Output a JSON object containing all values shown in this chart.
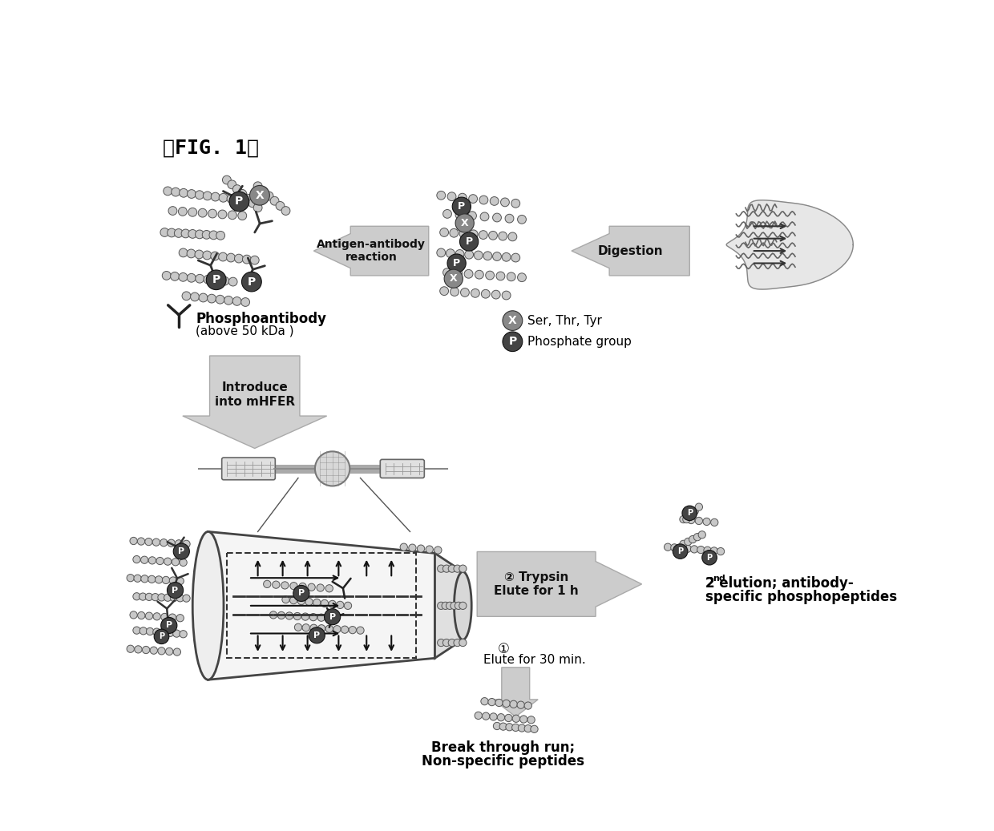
{
  "bg_color": "#ffffff",
  "text_color": "#000000",
  "bead_color": "#c8c8c8",
  "bead_ec": "#555555",
  "antibody_color": "#333333",
  "P_bg": "#555555",
  "X_bg": "#888888",
  "arrow_fill": "#cccccc",
  "arrow_ec": "#aaaaaa",
  "labels": {
    "fig_label": "《FIG. 1》",
    "phosphoantibody": "Phosphoantibody",
    "phosphoantibody_sub": "(above 50 kDa )",
    "antigen_antibody": "Antigen-antibody\nreaction",
    "digestion": "Digestion",
    "ser_thr_tyr": "Ser, Thr, Tyr",
    "phosphate": "Phosphate group",
    "introduce_mhfer": "Introduce\ninto mHFER",
    "trypsin": "② Trypsin\nElute for 1 h",
    "elute_label": "①",
    "elute_30": "Elute for 30 min.",
    "second_elution_line1": "2",
    "second_elution_sup": "nd",
    "second_elution_line2": " elution; antibody-",
    "second_elution_line3": "specific phosphopeptides",
    "breakthrough_line1": "Break through run;",
    "breakthrough_line2": "Non-specific peptides"
  }
}
